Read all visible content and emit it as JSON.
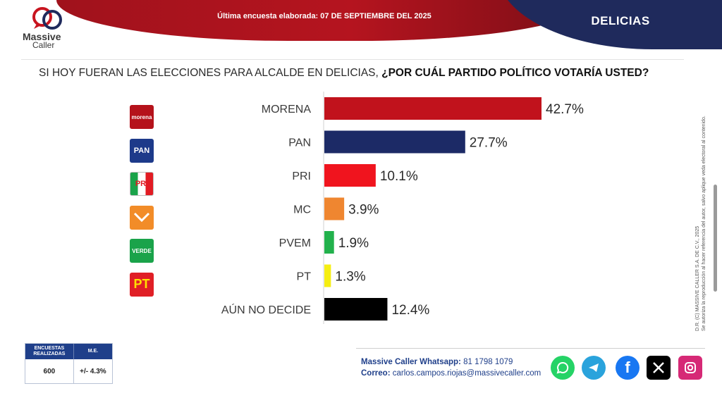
{
  "header": {
    "subtitle": "Última encuesta elaborada: 07 DE SEPTIEMBRE DEL 2025",
    "city": "DELICIAS",
    "brand_line1": "Massive",
    "brand_line2": "Caller",
    "colors": {
      "red": "#b5141f",
      "navy": "#1f2a5c"
    }
  },
  "question": {
    "prefix": "SI HOY FUERAN LAS ELECCIONES PARA ALCALDE EN DELICIAS, ",
    "bold": "¿POR CUÁL PARTIDO POLÍTICO VOTARÍA USTED?"
  },
  "parties": [
    {
      "icon": "morena-logo-icon",
      "text": "morena",
      "bg": "#b5121b",
      "fg": "#ffffff"
    },
    {
      "icon": "pan-logo-icon",
      "text": "PAN",
      "bg": "#1d3a8a",
      "fg": "#ffffff"
    },
    {
      "icon": "pri-logo-icon",
      "text": "PRI",
      "bg": "#ffffff",
      "fg": "#e21b23"
    },
    {
      "icon": "mc-logo-icon",
      "text": "",
      "bg": "#f28c28",
      "fg": "#ffffff"
    },
    {
      "icon": "verde-logo-icon",
      "text": "VERDE",
      "bg": "#1aa34a",
      "fg": "#ffffff"
    },
    {
      "icon": "pt-logo-icon",
      "text": "PT",
      "bg": "#e01f26",
      "fg": "#ffe000"
    }
  ],
  "chart_data": {
    "type": "bar",
    "orientation": "horizontal",
    "categories": [
      "MORENA",
      "PAN",
      "PRI",
      "MC",
      "PVEM",
      "PT",
      "AÚN NO DECIDE"
    ],
    "values": [
      42.7,
      27.7,
      10.1,
      3.9,
      1.9,
      1.3,
      12.4
    ],
    "value_labels": [
      "42.7%",
      "27.7%",
      "10.1%",
      "3.9%",
      "1.9%",
      "1.3%",
      "12.4%"
    ],
    "colors": [
      "#c1121c",
      "#1c2a66",
      "#f0141e",
      "#ef8630",
      "#22b14c",
      "#f5ee12",
      "#000000"
    ],
    "xlim": [
      0,
      42.7
    ],
    "grid": false
  },
  "survey_table": {
    "col1_header": "ENCUESTAS REALIZADAS",
    "col2_header": "M.E.",
    "col1_value": "600",
    "col2_value": "+/- 4.3%"
  },
  "footer": {
    "whatsapp_label": "Massive Caller Whatsapp:",
    "whatsapp_number": "81 1798 1079",
    "email_label": "Correo:",
    "email": "carlos.campos.riojas@massivecaller.com"
  },
  "social": [
    {
      "icon": "whatsapp-icon",
      "color": "#25d366"
    },
    {
      "icon": "telegram-icon",
      "color": "#2aa3dc"
    },
    {
      "icon": "facebook-icon",
      "color": "#1877f2"
    },
    {
      "icon": "x-icon",
      "color": "#000000"
    },
    {
      "icon": "instagram-icon",
      "color": "#d62976"
    }
  ],
  "legal": {
    "line1": "D.R. (C) MASSIVE CALLER S.A. DE C.V., 2025",
    "line2": "Se autoriza la reproducción al hacer referencia del autor, salvo aplique veda electoral al contenido."
  }
}
